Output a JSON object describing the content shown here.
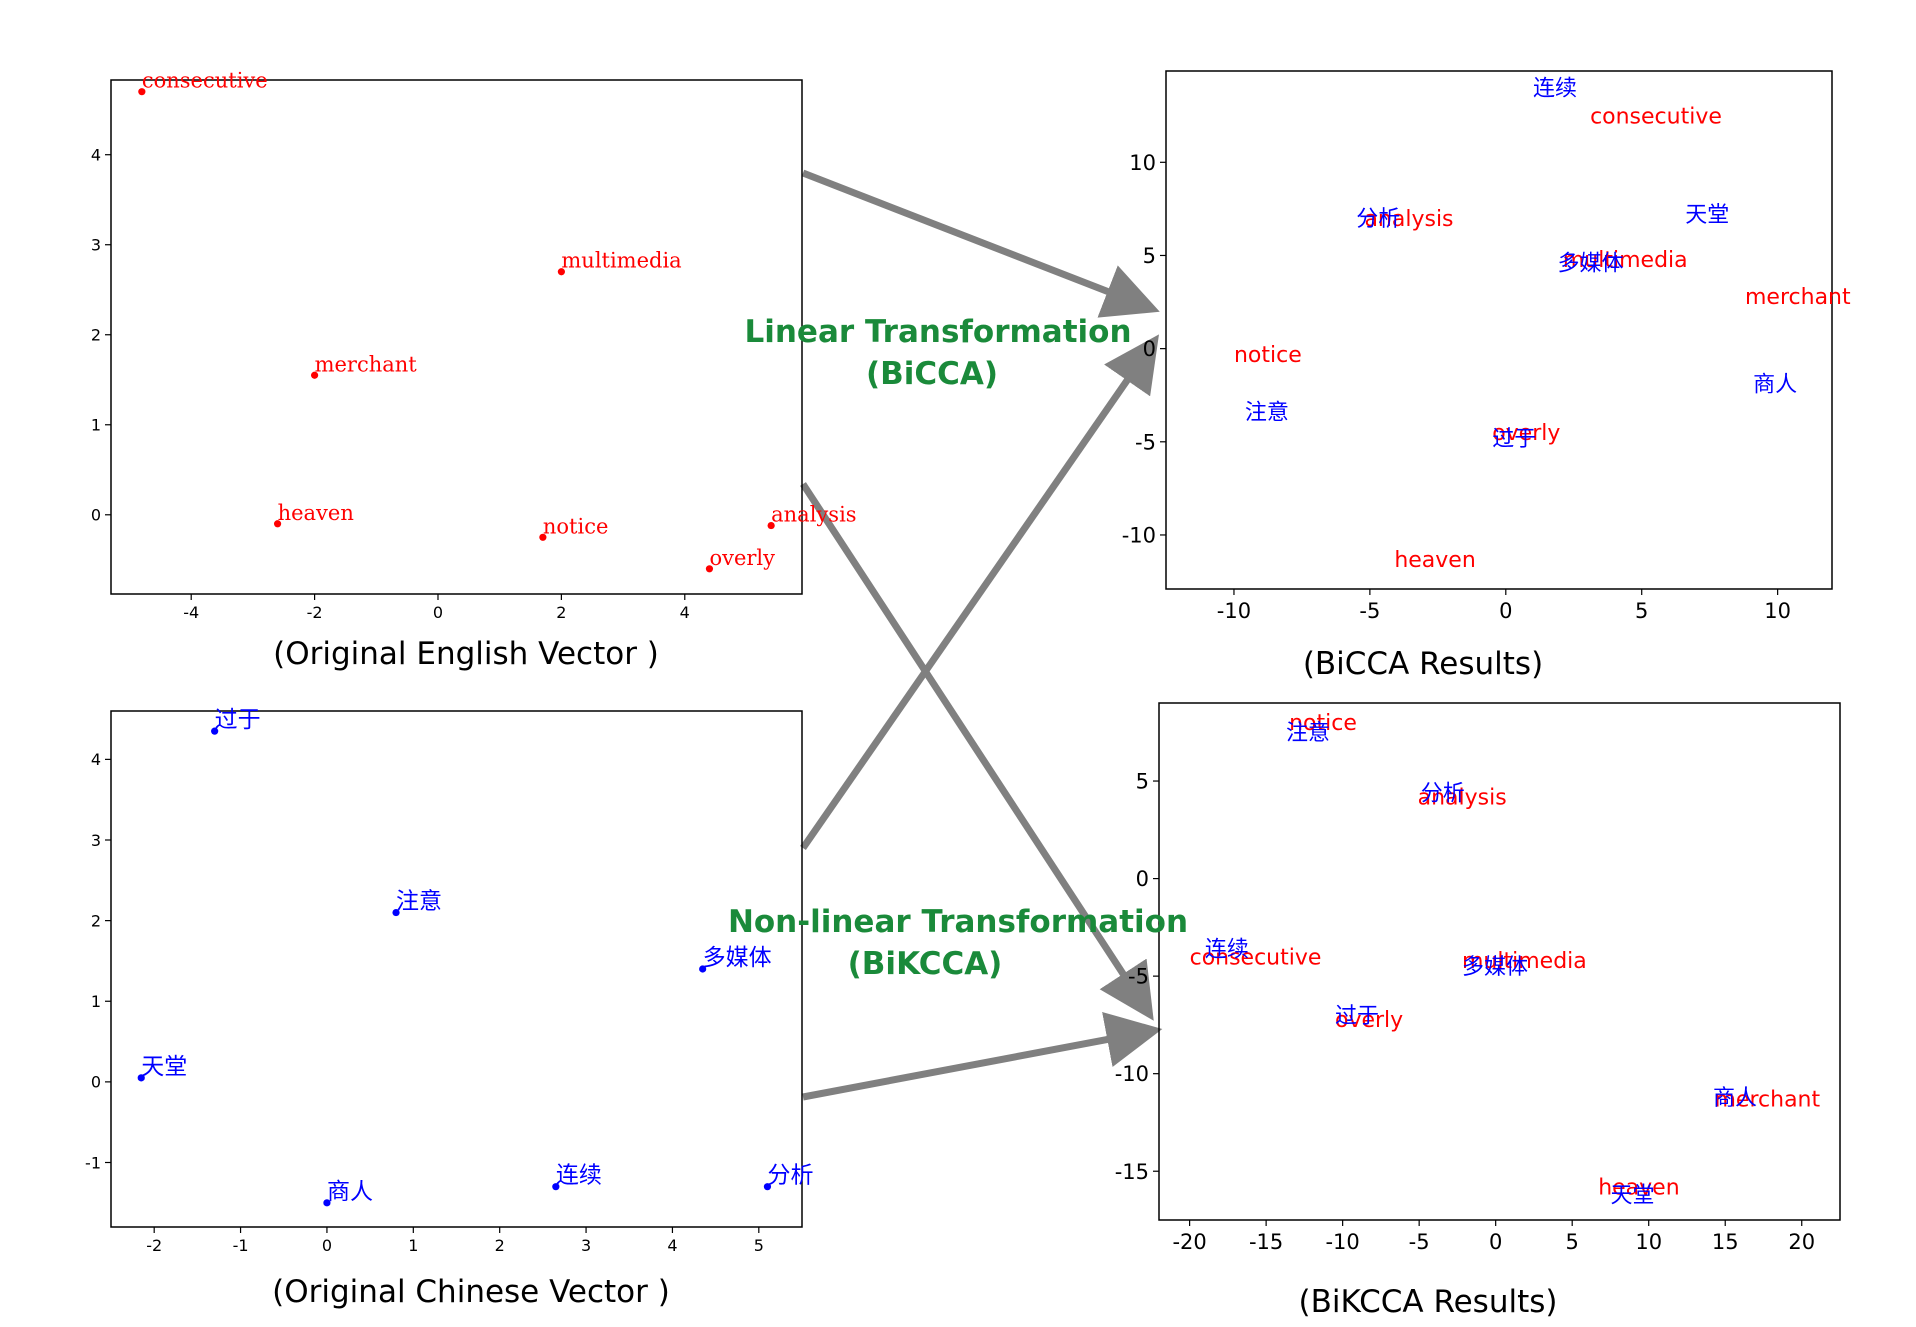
{
  "colors": {
    "english": "#ff0000",
    "chinese": "#0000ff",
    "arrow": "#808080",
    "transform_label": "#1a8a3a",
    "axes": "#000000"
  },
  "transform_labels": {
    "linear_line1": "Linear Transformation",
    "linear_line2": "(BiCCA)",
    "nonlinear_line1": "Non-linear Transformation",
    "nonlinear_line2": "(BiKCCA)"
  },
  "chart_data": [
    {
      "id": "english",
      "type": "scatter",
      "caption": "(Original English Vector )",
      "xlim": [
        -5.3,
        5.9
      ],
      "ylim": [
        -0.88,
        4.83
      ],
      "xticks": [
        -4,
        -2,
        0,
        2,
        4
      ],
      "yticks": [
        0,
        1,
        2,
        3,
        4
      ],
      "series": [
        {
          "language": "en",
          "markers": true,
          "points": [
            {
              "label": "consecutive",
              "x": -4.8,
              "y": 4.7
            },
            {
              "label": "multimedia",
              "x": 2.0,
              "y": 2.7
            },
            {
              "label": "merchant",
              "x": -2.0,
              "y": 1.55
            },
            {
              "label": "heaven",
              "x": -2.6,
              "y": -0.1
            },
            {
              "label": "notice",
              "x": 1.7,
              "y": -0.25
            },
            {
              "label": "analysis",
              "x": 5.4,
              "y": -0.12
            },
            {
              "label": "overly",
              "x": 4.4,
              "y": -0.6
            }
          ]
        }
      ]
    },
    {
      "id": "chinese",
      "type": "scatter",
      "caption": "(Original Chinese Vector )",
      "xlim": [
        -2.5,
        5.5
      ],
      "ylim": [
        -1.8,
        4.6
      ],
      "xticks": [
        -2,
        -1,
        0,
        1,
        2,
        3,
        4,
        5
      ],
      "yticks": [
        -1,
        0,
        1,
        2,
        3,
        4
      ],
      "series": [
        {
          "language": "zh",
          "markers": true,
          "points": [
            {
              "label": "过于",
              "x": -1.3,
              "y": 4.35
            },
            {
              "label": "注意",
              "x": 0.8,
              "y": 2.1
            },
            {
              "label": "多媒体",
              "x": 4.35,
              "y": 1.4
            },
            {
              "label": "天堂",
              "x": -2.15,
              "y": 0.05
            },
            {
              "label": "商人",
              "x": 0.0,
              "y": -1.5
            },
            {
              "label": "连续",
              "x": 2.65,
              "y": -1.3
            },
            {
              "label": "分析",
              "x": 5.1,
              "y": -1.3
            }
          ]
        }
      ]
    },
    {
      "id": "bicca",
      "type": "scatter",
      "caption": "(BiCCA Results)",
      "xlim": [
        -12.5,
        12
      ],
      "ylim": [
        -12.9,
        14.9
      ],
      "xticks": [
        -10,
        -5,
        0,
        5,
        10
      ],
      "yticks": [
        -10,
        -5,
        0,
        5,
        10
      ],
      "series": [
        {
          "language": "en",
          "markers": false,
          "points": [
            {
              "label": "consecutive",
              "x": 3.1,
              "y": 12.5
            },
            {
              "label": "analysis",
              "x": -5.2,
              "y": 7.0
            },
            {
              "label": "multimedia",
              "x": 2.1,
              "y": 4.8
            },
            {
              "label": "merchant",
              "x": 8.8,
              "y": 2.8
            },
            {
              "label": "notice",
              "x": -10.0,
              "y": -0.3
            },
            {
              "label": "overly",
              "x": -0.5,
              "y": -4.5
            },
            {
              "label": "heaven",
              "x": -4.1,
              "y": -11.3
            }
          ]
        },
        {
          "language": "zh",
          "markers": false,
          "points": [
            {
              "label": "连续",
              "x": 1.0,
              "y": 14.0
            },
            {
              "label": "分析",
              "x": -5.5,
              "y": 7.0
            },
            {
              "label": "天堂",
              "x": 6.6,
              "y": 7.2
            },
            {
              "label": "多媒体",
              "x": 1.9,
              "y": 4.6
            },
            {
              "label": "商人",
              "x": 9.1,
              "y": -1.9
            },
            {
              "label": "注意",
              "x": -9.6,
              "y": -3.4
            },
            {
              "label": "过于",
              "x": -0.5,
              "y": -4.8
            }
          ]
        }
      ]
    },
    {
      "id": "bikcca",
      "type": "scatter",
      "caption": "(BiKCCA Results)",
      "xlim": [
        -22,
        22.5
      ],
      "ylim": [
        -17.5,
        9
      ],
      "xticks": [
        -20,
        -15,
        -10,
        -5,
        0,
        5,
        10,
        15,
        20
      ],
      "yticks": [
        -15,
        -10,
        -5,
        0,
        5
      ],
      "series": [
        {
          "language": "en",
          "markers": false,
          "points": [
            {
              "label": "notice",
              "x": -13.5,
              "y": 8.0
            },
            {
              "label": "analysis",
              "x": -5.1,
              "y": 4.2
            },
            {
              "label": "consecutive",
              "x": -20.0,
              "y": -4.0
            },
            {
              "label": "multimedia",
              "x": -2.2,
              "y": -4.2
            },
            {
              "label": "overly",
              "x": -10.5,
              "y": -7.2
            },
            {
              "label": "merchant",
              "x": 14.3,
              "y": -11.3
            },
            {
              "label": "heaven",
              "x": 6.7,
              "y": -15.8
            }
          ]
        },
        {
          "language": "zh",
          "markers": false,
          "points": [
            {
              "label": "注意",
              "x": -13.7,
              "y": 7.5
            },
            {
              "label": "分析",
              "x": -4.9,
              "y": 4.4
            },
            {
              "label": "连续",
              "x": -19.0,
              "y": -3.6
            },
            {
              "label": "多媒体",
              "x": -2.2,
              "y": -4.5
            },
            {
              "label": "过于",
              "x": -10.5,
              "y": -7.0
            },
            {
              "label": "商人",
              "x": 14.2,
              "y": -11.2
            },
            {
              "label": "天堂",
              "x": 7.5,
              "y": -16.2
            }
          ]
        }
      ]
    }
  ]
}
